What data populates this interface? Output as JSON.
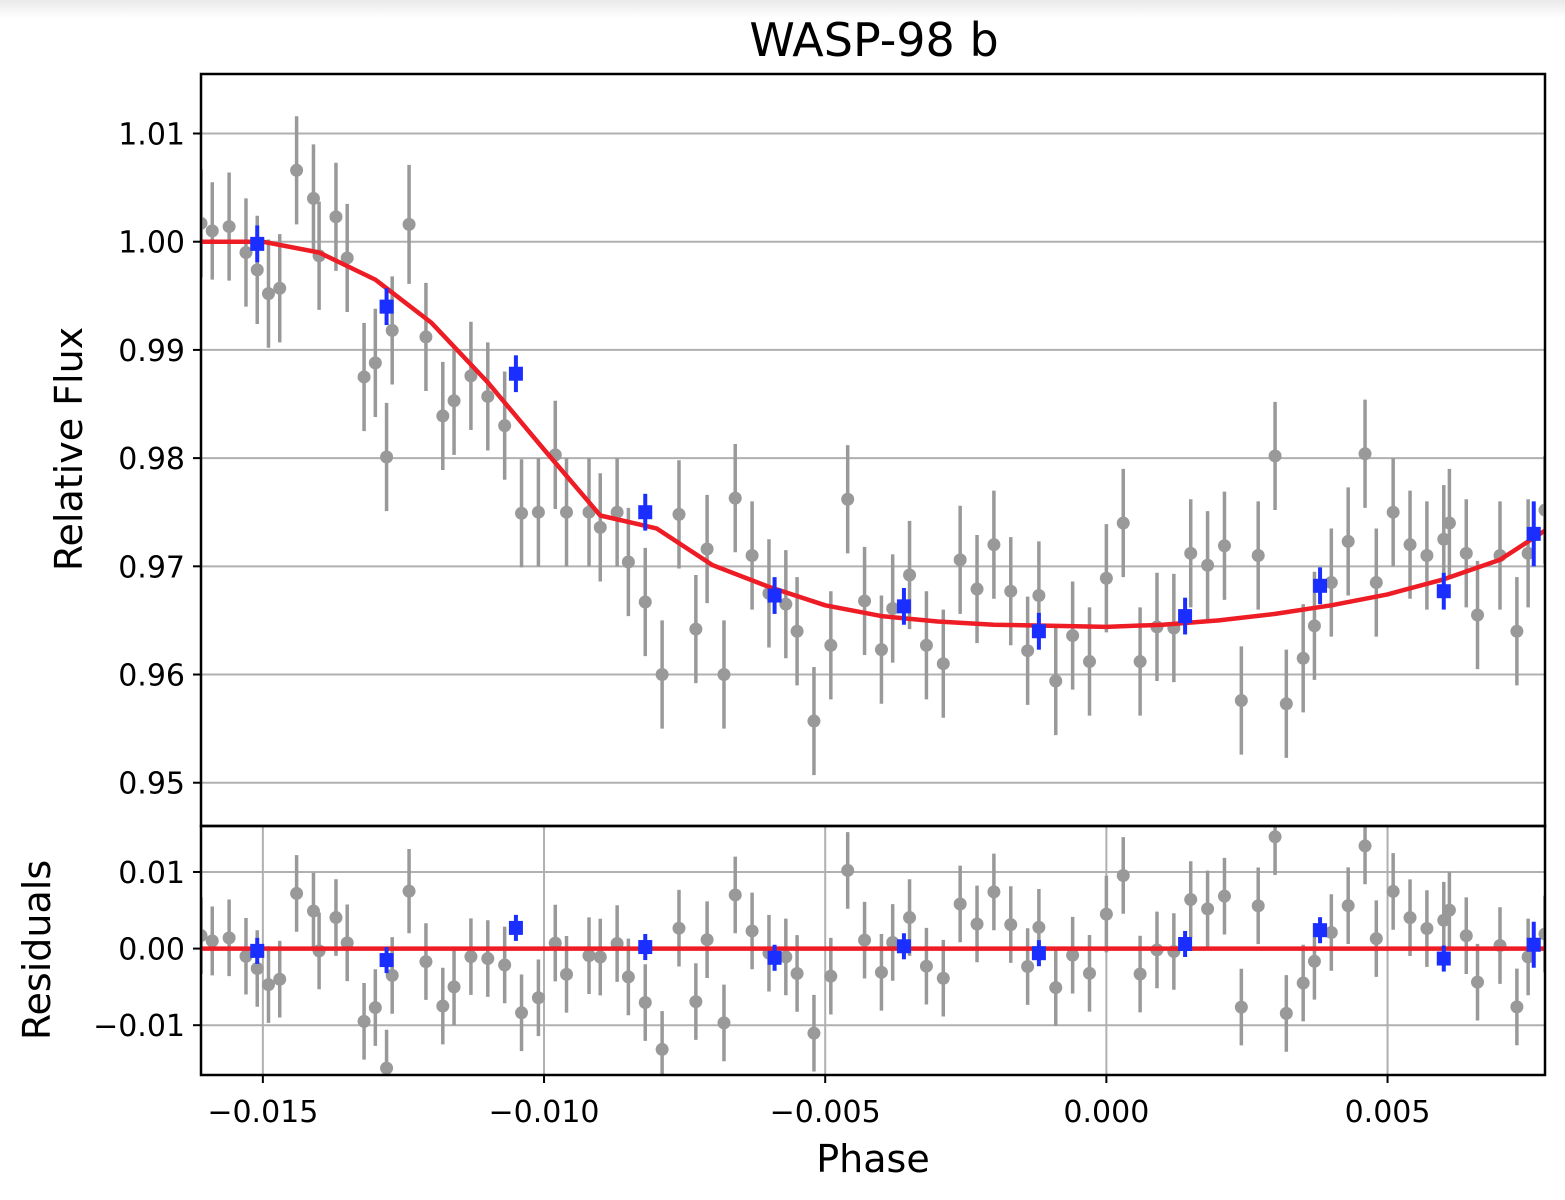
{
  "chart_data": {
    "type": "scatter",
    "title": "WASP-98 b",
    "xlabel": "Phase",
    "xlim": [
      -0.0161,
      0.0078
    ],
    "x_ticks": [
      -0.015,
      -0.01,
      -0.005,
      0.0,
      0.005
    ],
    "x_tick_labels": [
      "−0.015",
      "−0.010",
      "−0.005",
      "0.000",
      "0.005"
    ],
    "panels": {
      "flux": {
        "ylabel": "Relative Flux",
        "ylim": [
          0.946,
          1.0155
        ],
        "y_ticks": [
          0.95,
          0.96,
          0.97,
          0.98,
          0.99,
          1.0,
          1.01
        ],
        "y_tick_labels": [
          "0.95",
          "0.96",
          "0.97",
          "0.98",
          "0.99",
          "1.00",
          "1.01"
        ],
        "grid": true
      },
      "residuals": {
        "ylabel": "Residuals",
        "ylim": [
          -0.0165,
          0.016
        ],
        "y_ticks": [
          -0.01,
          0.0,
          0.01
        ],
        "y_tick_labels": [
          "−0.01",
          "0.00",
          "0.01"
        ],
        "grid": true
      }
    },
    "series": [
      {
        "kind": "unbinned data",
        "color": "#999999",
        "x": [
          -0.0161,
          -0.0159,
          -0.0156,
          -0.0153,
          -0.0151,
          -0.0149,
          -0.0147,
          -0.0144,
          -0.0141,
          -0.014,
          -0.0137,
          -0.0135,
          -0.0132,
          -0.013,
          -0.0128,
          -0.0127,
          -0.0124,
          -0.0121,
          -0.0118,
          -0.0116,
          -0.0113,
          -0.011,
          -0.0107,
          -0.0104,
          -0.0101,
          -0.0098,
          -0.0096,
          -0.0092,
          -0.009,
          -0.0087,
          -0.0085,
          -0.0082,
          -0.0079,
          -0.0076,
          -0.0073,
          -0.0071,
          -0.0068,
          -0.0066,
          -0.0063,
          -0.006,
          -0.0057,
          -0.0055,
          -0.0052,
          -0.0049,
          -0.0046,
          -0.0043,
          -0.004,
          -0.0038,
          -0.0035,
          -0.0032,
          -0.0029,
          -0.0026,
          -0.0023,
          -0.002,
          -0.0017,
          -0.0014,
          -0.0012,
          -0.0009,
          -0.0006,
          -0.0003,
          0.0,
          0.0003,
          0.0006,
          0.0009,
          0.0012,
          0.0015,
          0.0018,
          0.0021,
          0.0024,
          0.0027,
          0.003,
          0.0032,
          0.0035,
          0.0037,
          0.004,
          0.0043,
          0.0046,
          0.0048,
          0.0051,
          0.0054,
          0.0057,
          0.006,
          0.0061,
          0.0064,
          0.0066,
          0.007,
          0.0073,
          0.0075,
          0.0078
        ],
        "y": [
          1.0017,
          1.001,
          1.0014,
          0.999,
          0.9974,
          0.9952,
          0.9957,
          1.0066,
          1.004,
          0.9987,
          1.0023,
          0.9985,
          0.9875,
          0.9888,
          0.9801,
          0.9918,
          1.0016,
          0.9912,
          0.9839,
          0.9853,
          0.9876,
          0.9857,
          0.983,
          0.9749,
          0.975,
          0.9803,
          0.975,
          0.975,
          0.9736,
          0.975,
          0.9704,
          0.9667,
          0.96,
          0.9748,
          0.9642,
          0.9716,
          0.96,
          0.9763,
          0.971,
          0.9675,
          0.9665,
          0.964,
          0.9557,
          0.9627,
          0.9762,
          0.9668,
          0.9623,
          0.9661,
          0.9692,
          0.9627,
          0.961,
          0.9706,
          0.9679,
          0.972,
          0.9677,
          0.9622,
          0.9673,
          0.9594,
          0.9636,
          0.9612,
          0.9689,
          0.974,
          0.9612,
          0.9644,
          0.9643,
          0.9712,
          0.9701,
          0.9719,
          0.9576,
          0.971,
          0.9802,
          0.9573,
          0.9615,
          0.9645,
          0.9685,
          0.9723,
          0.9804,
          0.9685,
          0.975,
          0.972,
          0.971,
          0.9725,
          0.974,
          0.9712,
          0.9655,
          0.971,
          0.964,
          0.9712,
          0.9752
        ],
        "yerr": [
          0.005,
          0.0045,
          0.005,
          0.005,
          0.005,
          0.005,
          0.005,
          0.005,
          0.005,
          0.005,
          0.005,
          0.005,
          0.005,
          0.005,
          0.005,
          0.005,
          0.0055,
          0.005,
          0.005,
          0.005,
          0.005,
          0.005,
          0.005,
          0.005,
          0.005,
          0.005,
          0.005,
          0.005,
          0.005,
          0.005,
          0.005,
          0.005,
          0.005,
          0.005,
          0.005,
          0.005,
          0.005,
          0.005,
          0.005,
          0.005,
          0.005,
          0.005,
          0.005,
          0.005,
          0.005,
          0.005,
          0.005,
          0.005,
          0.005,
          0.005,
          0.005,
          0.005,
          0.005,
          0.005,
          0.005,
          0.005,
          0.005,
          0.005,
          0.005,
          0.005,
          0.005,
          0.005,
          0.005,
          0.005,
          0.005,
          0.005,
          0.005,
          0.005,
          0.005,
          0.005,
          0.005,
          0.005,
          0.005,
          0.005,
          0.005,
          0.005,
          0.005,
          0.005,
          0.005,
          0.005,
          0.005,
          0.005,
          0.005,
          0.005,
          0.005,
          0.005,
          0.005,
          0.005,
          0.005
        ]
      },
      {
        "kind": "binned data",
        "color": "#1a2eff",
        "x": [
          -0.0151,
          -0.0128,
          -0.0105,
          -0.0082,
          -0.0059,
          -0.0036,
          -0.0012,
          0.0014,
          0.0038,
          0.006,
          0.0076
        ],
        "y": [
          0.9998,
          0.994,
          0.9878,
          0.975,
          0.9673,
          0.9663,
          0.964,
          0.9654,
          0.9682,
          0.9677,
          0.973
        ],
        "yerr": [
          0.0017,
          0.0017,
          0.0017,
          0.0017,
          0.0017,
          0.0017,
          0.0017,
          0.0017,
          0.0017,
          0.0017,
          0.003
        ],
        "residuals": [
          -0.0003,
          -0.0015,
          0.0027,
          0.0002,
          -0.0012,
          0.0003,
          -0.0006,
          0.0006,
          0.0024,
          -0.0013,
          0.0005
        ]
      },
      {
        "kind": "model",
        "color": "#ee1c24",
        "x": [
          -0.0161,
          -0.015,
          -0.014,
          -0.013,
          -0.012,
          -0.011,
          -0.01,
          -0.009,
          -0.008,
          -0.007,
          -0.006,
          -0.005,
          -0.004,
          -0.003,
          -0.002,
          -0.001,
          0.0,
          0.001,
          0.002,
          0.003,
          0.004,
          0.005,
          0.006,
          0.007,
          0.0078
        ],
        "y": [
          1.0,
          1.0,
          0.999,
          0.9965,
          0.9925,
          0.987,
          0.9808,
          0.9747,
          0.9735,
          0.9701,
          0.9681,
          0.9664,
          0.9654,
          0.9649,
          0.9646,
          0.9645,
          0.9644,
          0.9646,
          0.965,
          0.9656,
          0.9664,
          0.9674,
          0.9688,
          0.9706,
          0.9733
        ]
      }
    ]
  }
}
